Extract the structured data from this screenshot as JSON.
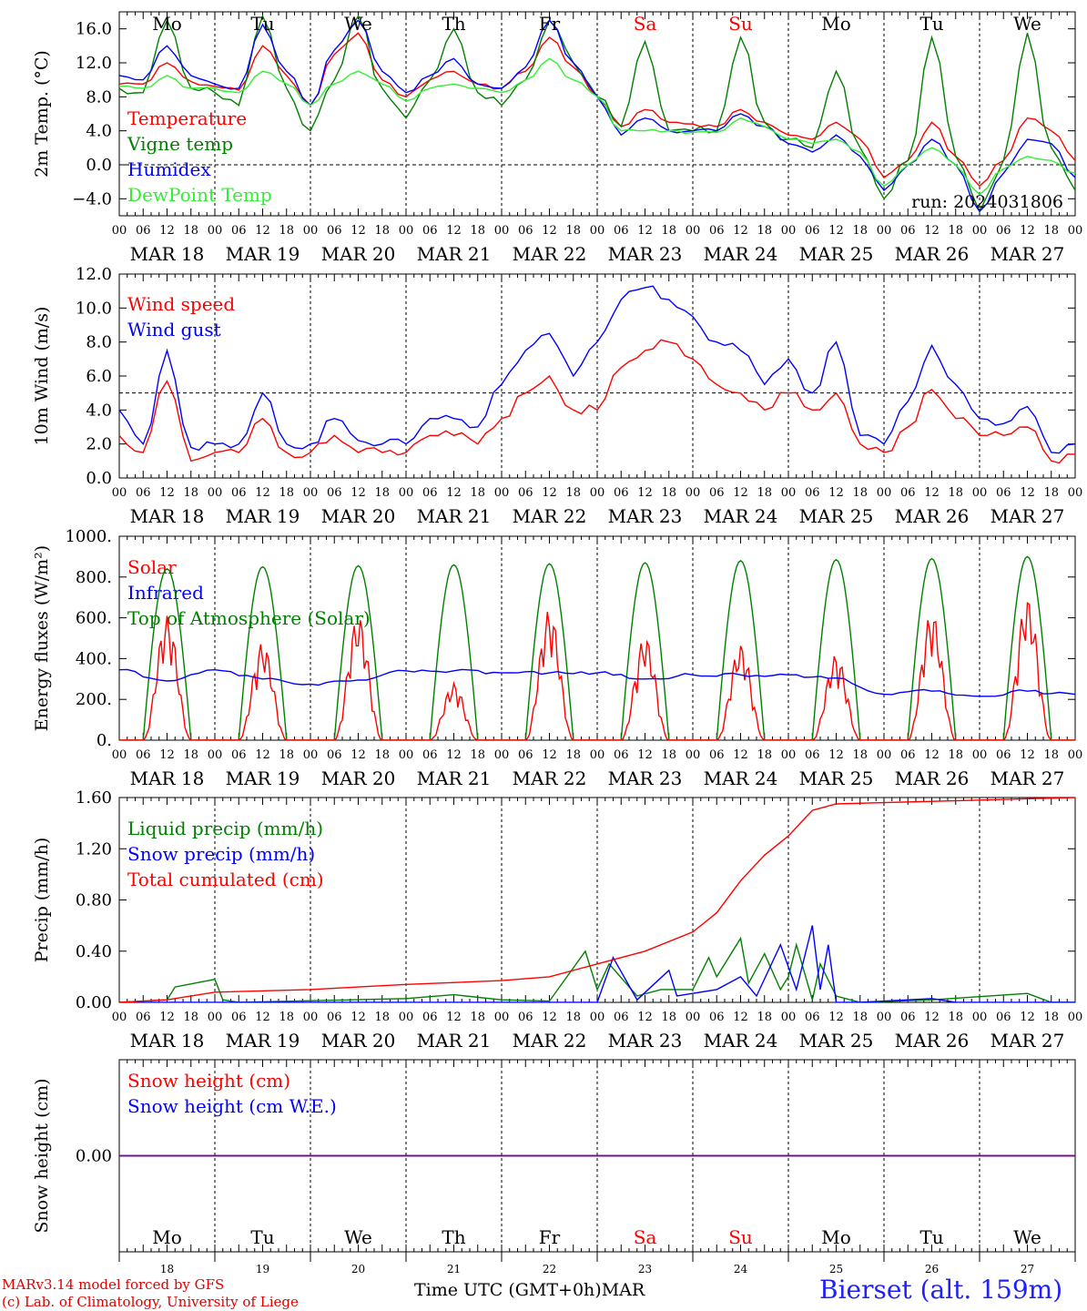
{
  "chart_data": [
    {
      "type": "line",
      "ylabel": "2m Temp. (°C)",
      "ylim": [
        -6,
        18
      ],
      "yticks": [
        "16.0",
        "12.0",
        "8.0",
        "4.0",
        "0.0",
        "−4.0"
      ],
      "ytick_values": [
        16,
        12,
        8,
        4,
        0,
        -4
      ],
      "reference_line": 0,
      "annotation": "run: 2024031806",
      "day_names": [
        "Mo",
        "Tu",
        "We",
        "Th",
        "Fr",
        "Sa",
        "Su",
        "Mo",
        "Tu",
        "We"
      ],
      "x_hours": [
        0,
        6,
        12,
        18,
        24,
        30,
        36,
        42,
        48,
        54,
        60,
        66,
        72,
        78,
        84,
        90,
        96,
        102,
        108,
        114,
        120,
        126,
        132,
        138,
        144,
        150,
        156,
        162,
        168,
        174,
        180,
        186,
        192,
        198,
        204,
        210,
        216,
        222,
        228,
        234,
        240
      ],
      "series": [
        {
          "name": "Temperature",
          "color": "#ff0000",
          "values": [
            9.5,
            9.5,
            12.0,
            9.8,
            9.2,
            8.8,
            14.0,
            10.5,
            7.0,
            13.0,
            15.5,
            10.0,
            8.0,
            10.0,
            11.0,
            9.5,
            9.0,
            11.0,
            15.0,
            11.5,
            8.0,
            4.5,
            6.5,
            5.0,
            4.8,
            4.5,
            6.5,
            5.0,
            3.5,
            3.0,
            5.0,
            3.0,
            -1.5,
            0.5,
            5.0,
            1.0,
            -2.5,
            0.5,
            5.5,
            4.0,
            0.5
          ]
        },
        {
          "name": "Vigne temp",
          "color": "#008000",
          "values": [
            9.0,
            8.5,
            17.0,
            9.0,
            8.5,
            7.0,
            17.5,
            9.0,
            4.0,
            10.0,
            17.5,
            9.0,
            5.5,
            10.0,
            16.0,
            8.5,
            7.0,
            10.0,
            17.0,
            12.0,
            8.0,
            4.5,
            14.5,
            4.0,
            4.0,
            4.0,
            15.0,
            5.0,
            3.0,
            2.0,
            11.0,
            2.0,
            -4.0,
            0.5,
            15.0,
            1.0,
            -5.5,
            0.5,
            15.5,
            2.0,
            -3.0
          ]
        },
        {
          "name": "Humidex",
          "color": "#0000ff",
          "values": [
            10.5,
            10.0,
            14.0,
            10.5,
            9.5,
            9.0,
            16.5,
            11.0,
            7.0,
            13.5,
            17.0,
            11.0,
            8.5,
            10.5,
            12.5,
            9.5,
            9.0,
            11.5,
            17.0,
            12.0,
            8.0,
            3.5,
            5.5,
            4.0,
            4.0,
            4.0,
            6.0,
            4.5,
            2.5,
            1.5,
            3.5,
            1.0,
            -3.0,
            0.0,
            3.0,
            0.0,
            -5.5,
            -1.0,
            3.0,
            2.5,
            -1.5
          ]
        },
        {
          "name": "DewPoint Temp",
          "color": "#33ee33",
          "values": [
            9.2,
            9.0,
            10.5,
            9.0,
            9.0,
            8.5,
            11.0,
            9.5,
            7.0,
            9.5,
            11.0,
            9.5,
            7.5,
            9.0,
            9.5,
            9.0,
            8.5,
            10.0,
            12.5,
            10.0,
            8.0,
            4.0,
            4.0,
            4.0,
            3.8,
            3.8,
            5.5,
            4.5,
            3.0,
            2.5,
            3.0,
            1.5,
            -2.5,
            0.0,
            2.0,
            0.0,
            -3.5,
            -0.5,
            1.0,
            0.5,
            -1.0
          ]
        }
      ]
    },
    {
      "type": "line",
      "ylabel": "10m Wind (m/s)",
      "ylim": [
        0,
        12
      ],
      "yticks": [
        "12.0",
        "10.0",
        "8.0",
        "6.0",
        "4.0",
        "2.0",
        "0.0"
      ],
      "ytick_values": [
        12,
        10,
        8,
        6,
        4,
        2,
        0
      ],
      "reference_line": 5,
      "x_hours": [
        0,
        6,
        12,
        18,
        24,
        30,
        36,
        42,
        48,
        54,
        60,
        66,
        72,
        78,
        84,
        90,
        96,
        102,
        108,
        114,
        120,
        126,
        132,
        138,
        144,
        150,
        156,
        162,
        168,
        174,
        180,
        186,
        192,
        198,
        204,
        210,
        216,
        222,
        228,
        234,
        240
      ],
      "series": [
        {
          "name": "Wind speed",
          "color": "#ff0000",
          "values": [
            2.5,
            1.5,
            5.7,
            1.0,
            1.5,
            1.5,
            3.5,
            1.5,
            1.5,
            2.5,
            1.5,
            1.5,
            1.5,
            2.5,
            2.5,
            2.0,
            3.5,
            5.0,
            6.0,
            4.0,
            4.0,
            6.5,
            7.5,
            8.0,
            7.0,
            5.5,
            5.0,
            4.0,
            5.0,
            4.0,
            5.0,
            2.0,
            1.5,
            3.0,
            5.2,
            3.5,
            2.5,
            2.5,
            3.0,
            1.0,
            1.4
          ]
        },
        {
          "name": "Wind gust",
          "color": "#0000ff",
          "values": [
            4.0,
            2.0,
            7.5,
            1.8,
            2.0,
            2.0,
            5.0,
            2.0,
            2.0,
            3.5,
            2.2,
            2.0,
            2.0,
            3.5,
            3.5,
            3.0,
            5.5,
            7.5,
            8.5,
            6.0,
            8.0,
            10.5,
            11.2,
            10.5,
            9.5,
            8.0,
            7.5,
            5.5,
            7.0,
            5.0,
            8.0,
            2.5,
            2.0,
            4.5,
            7.8,
            5.5,
            3.5,
            3.2,
            4.2,
            1.5,
            2.0
          ]
        }
      ]
    },
    {
      "type": "line",
      "ylabel": "Energy fluxes (W/m²)",
      "ylim": [
        0,
        1000
      ],
      "yticks": [
        "1000.",
        "800.",
        "600.",
        "400.",
        "200.",
        "0."
      ],
      "ytick_values": [
        1000,
        800,
        600,
        400,
        200,
        0
      ],
      "daily_peaks": {
        "top_of_atmosphere_solar": [
          840,
          850,
          855,
          860,
          865,
          870,
          880,
          885,
          890,
          900
        ],
        "solar": [
          610,
          480,
          610,
          280,
          640,
          510,
          470,
          420,
          630,
          700
        ]
      },
      "series": [
        {
          "name": "Solar",
          "color": "#ff0000"
        },
        {
          "name": "Infrared",
          "color": "#0000ff",
          "x_hours": [
            0,
            12,
            24,
            36,
            48,
            60,
            72,
            84,
            96,
            108,
            120,
            132,
            144,
            156,
            168,
            180,
            192,
            204,
            216,
            228,
            240
          ],
          "values": [
            345,
            290,
            345,
            300,
            275,
            295,
            340,
            340,
            330,
            330,
            330,
            300,
            320,
            320,
            320,
            305,
            225,
            240,
            215,
            240,
            225
          ]
        },
        {
          "name": "Top of Atmosphere (Solar)",
          "color": "#008000"
        }
      ]
    },
    {
      "type": "line",
      "ylabel": "Precip (mm/h)",
      "ylim": [
        0,
        1.6
      ],
      "yticks": [
        "1.60",
        "1.20",
        "0.80",
        "0.40",
        "0.00"
      ],
      "ytick_values": [
        1.6,
        1.2,
        0.8,
        0.4,
        0
      ],
      "series": [
        {
          "name": "Liquid precip (mm/h)",
          "color": "#008000",
          "x_hours": [
            0,
            12,
            14,
            24,
            26,
            30,
            72,
            84,
            96,
            108,
            117,
            120,
            123,
            130,
            136,
            144,
            148,
            150,
            156,
            158,
            162,
            166,
            168,
            170,
            174,
            176,
            180,
            186,
            204,
            228,
            234,
            240
          ],
          "values": [
            0,
            0.02,
            0.12,
            0.18,
            0.02,
            0,
            0.03,
            0.06,
            0.02,
            0.01,
            0.4,
            0.1,
            0.3,
            0.05,
            0.1,
            0.1,
            0.35,
            0.2,
            0.5,
            0.15,
            0.38,
            0.1,
            0.2,
            0.45,
            0.02,
            0.3,
            0.05,
            0,
            0.02,
            0.07,
            0,
            0
          ]
        },
        {
          "name": "Snow precip (mm/h)",
          "color": "#0000ff",
          "x_hours": [
            0,
            120,
            124,
            130,
            138,
            140,
            150,
            156,
            160,
            166,
            170,
            174,
            176,
            178,
            180,
            186,
            204,
            210,
            240
          ],
          "values": [
            0,
            0,
            0.35,
            0.02,
            0.25,
            0.05,
            0.1,
            0.2,
            0.05,
            0.45,
            0.1,
            0.6,
            0.1,
            0.45,
            0,
            0,
            0.03,
            0,
            0
          ]
        },
        {
          "name": "Total cumulated (cm)",
          "color": "#ff0000",
          "x_hours": [
            0,
            12,
            24,
            48,
            60,
            72,
            96,
            108,
            120,
            132,
            144,
            150,
            156,
            162,
            168,
            174,
            180,
            192,
            216,
            240
          ],
          "values": [
            0,
            0.02,
            0.08,
            0.1,
            0.12,
            0.14,
            0.17,
            0.2,
            0.3,
            0.4,
            0.55,
            0.7,
            0.95,
            1.15,
            1.3,
            1.5,
            1.55,
            1.56,
            1.58,
            1.6
          ]
        }
      ]
    },
    {
      "type": "line",
      "ylabel": "Snow height (cm)",
      "ylim": [
        -1,
        1
      ],
      "yticks": [
        "0.00"
      ],
      "ytick_values": [
        0
      ],
      "series": [
        {
          "name": "Snow height (cm)",
          "color": "#ff0000",
          "x_hours": [
            0,
            240
          ],
          "values": [
            0,
            0
          ]
        },
        {
          "name": "Snow height (cm W.E.)",
          "color": "#0000ff",
          "x_hours": [
            0,
            240
          ],
          "values": [
            0,
            0
          ]
        }
      ]
    }
  ],
  "x_axis": {
    "hour_labels": [
      "00",
      "06",
      "12",
      "18"
    ],
    "end_label": "00",
    "day_labels": [
      "MAR 18",
      "MAR 19",
      "MAR 20",
      "MAR 21",
      "MAR 22",
      "MAR 23",
      "MAR 24",
      "MAR 25",
      "MAR 26",
      "MAR 27"
    ],
    "bottom_day_names": [
      "Mo",
      "Tu",
      "We",
      "Th",
      "Fr",
      "Sa",
      "Su",
      "Mo",
      "Tu",
      "We"
    ],
    "bottom_day_numbers": [
      "18",
      "19",
      "20",
      "21",
      "22",
      "23",
      "24",
      "25",
      "26",
      "27"
    ],
    "weekend_color": "#ff0000",
    "weekday_color": "#000000"
  },
  "footer": {
    "credit_line1": "MARv3.14 model forced by GFS",
    "credit_line2": "(c) Lab. of Climatology, University of Liege",
    "x_caption": "Time UTC (GMT+0h)MAR",
    "station": "Bierset (alt. 159m)"
  }
}
